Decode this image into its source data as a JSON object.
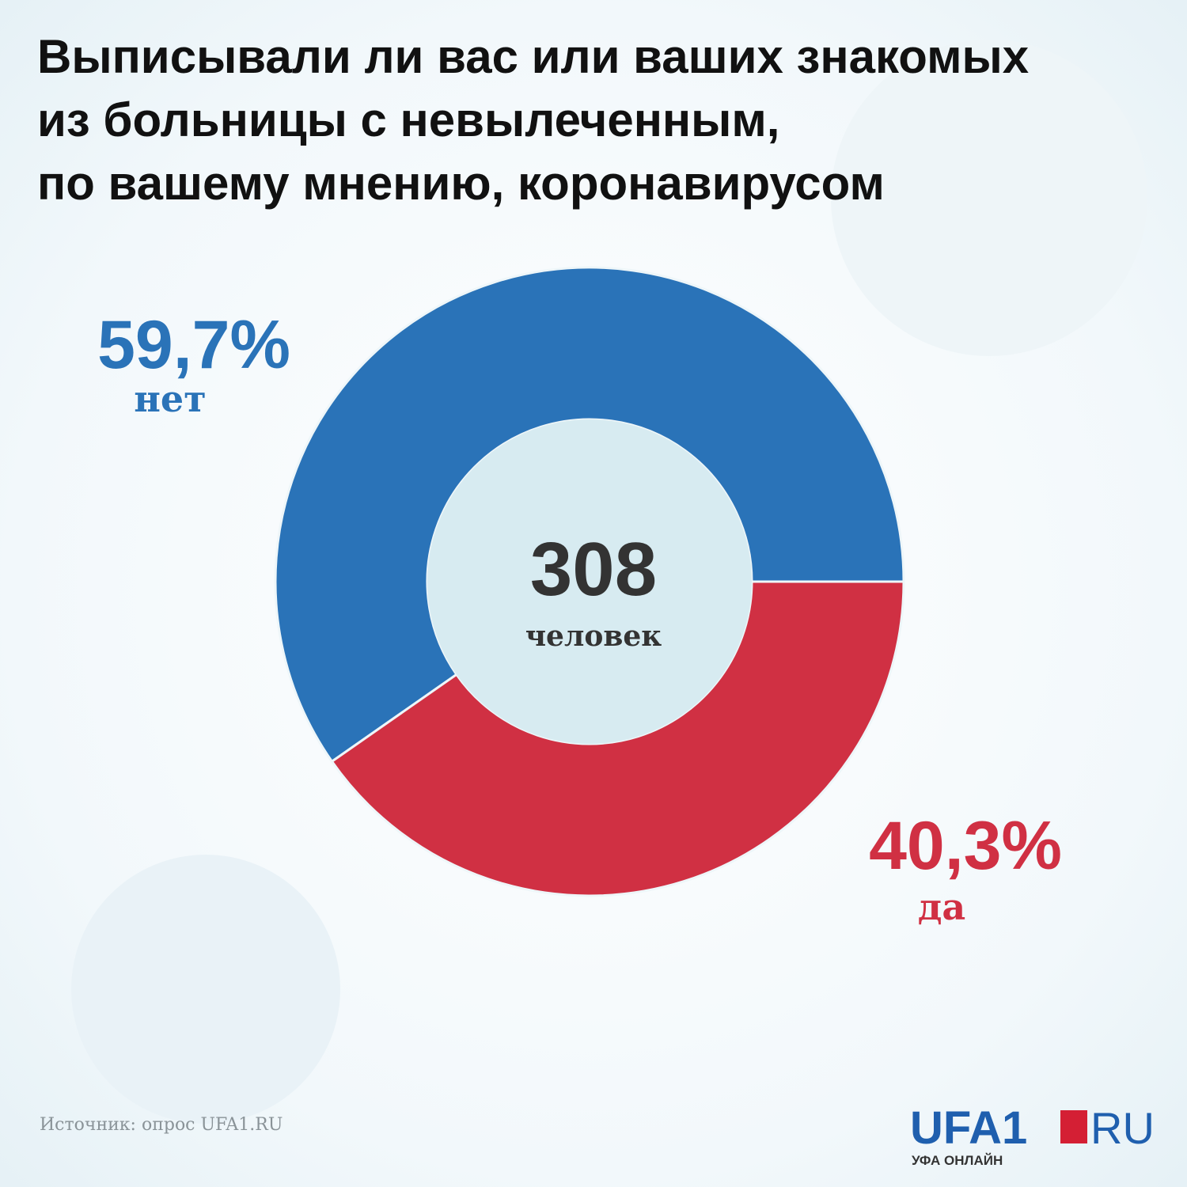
{
  "chart_data": {
    "type": "pie",
    "title": [
      "Выписывали ли вас или ваших знакомых",
      "из больницы с невылеченным,",
      "по вашему мнению, коронавирусом"
    ],
    "categories": [
      "нет",
      "да"
    ],
    "values": [
      59.7,
      40.3
    ],
    "value_labels": [
      "59,7%",
      "40,3%"
    ],
    "colors": [
      "#2a73b8",
      "#d03043"
    ],
    "donut": true,
    "total": 308,
    "total_label": "человек",
    "source": "Источник: опрос UFA1.RU"
  },
  "logo": {
    "name": "UFA1",
    "suffix": "RU",
    "tagline": "УФА ОНЛАЙН"
  }
}
